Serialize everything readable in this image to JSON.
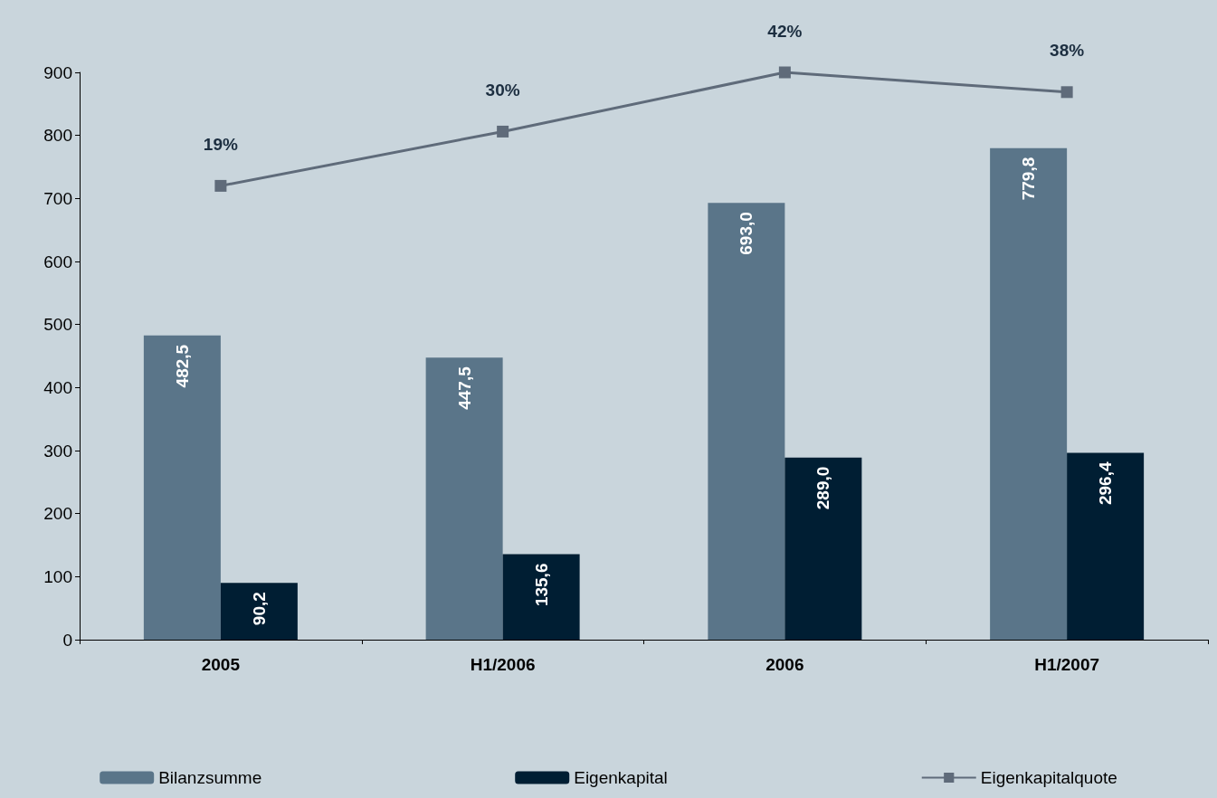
{
  "chart_data": {
    "type": "bar",
    "categories": [
      "2005",
      "H1/2006",
      "2006",
      "H1/2007"
    ],
    "series": [
      {
        "name": "Bilanzsumme",
        "color": "#5a7589",
        "values": [
          482.5,
          447.5,
          693.0,
          779.8
        ],
        "value_labels": [
          "482,5",
          "447,5",
          "693,0",
          "779,8"
        ]
      },
      {
        "name": "Eigenkapital",
        "color": "#001e33",
        "values": [
          90.2,
          135.6,
          289.0,
          296.4
        ],
        "value_labels": [
          "90,2",
          "135,6",
          "289,0",
          "296,4"
        ]
      },
      {
        "name": "Eigenkapitalquote",
        "type": "line",
        "axis": "y2",
        "color": "#5f6b7a",
        "values": [
          19,
          30,
          42,
          38
        ],
        "value_labels": [
          "19%",
          "30%",
          "42%",
          "38%"
        ]
      }
    ],
    "ylim": [
      0,
      900
    ],
    "yticks": [
      0,
      100,
      200,
      300,
      400,
      500,
      600,
      700,
      800,
      900
    ],
    "legend": "bottom",
    "marker": "square",
    "line_style": "solid",
    "grid": false
  }
}
